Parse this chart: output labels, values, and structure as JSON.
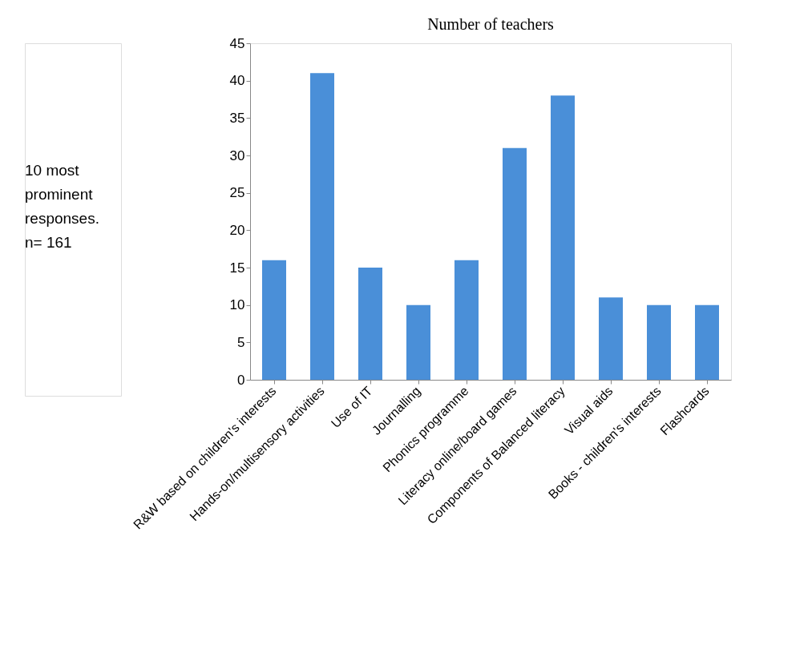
{
  "chart_data": {
    "type": "bar",
    "title": "Number of teachers",
    "categories": [
      "R&W based on children's interests",
      "Hands-on/multisensory activities",
      "Use of IT",
      "Journalling",
      "Phonics programme",
      "Literacy online/board games",
      "Components of Balanced literacy",
      "Visual aids",
      "Books - children's interests",
      "Flashcards"
    ],
    "values": [
      16,
      41,
      15,
      10,
      16,
      31,
      38,
      11,
      10,
      10
    ],
    "color": "#4a8fd8",
    "ylim": [
      0,
      45
    ],
    "yticks": [
      0,
      5,
      10,
      15,
      20,
      25,
      30,
      35,
      40,
      45
    ],
    "grid": false,
    "annotations": [
      "10 most\nprominent\nresponses.\nn= 161"
    ]
  }
}
